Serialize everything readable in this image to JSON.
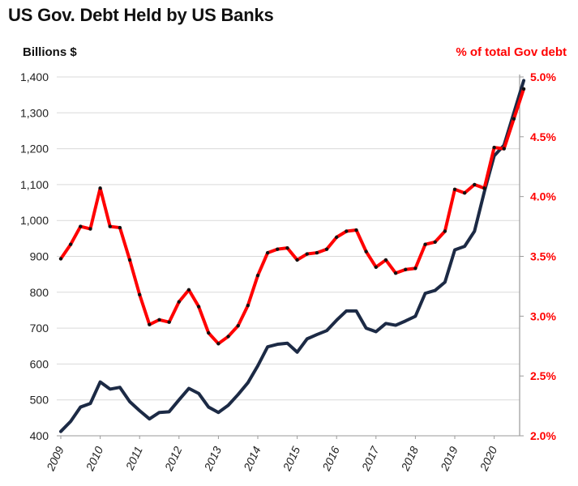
{
  "chart_data": {
    "type": "line",
    "title": "US Gov. Debt Held by US Banks",
    "ylabel_left": "Billions $",
    "ylabel_right": "% of total Gov debt",
    "colors": {
      "debt_line": "#1c2a45",
      "pct_line": "#ff0000",
      "markers": "#111111",
      "grid": "#d9d9d9",
      "right_axis": "#ff0000"
    },
    "ylim_left": [
      400,
      1400
    ],
    "ylim_right": [
      2.0,
      5.0
    ],
    "yticks_left": [
      "400",
      "500",
      "600",
      "700",
      "800",
      "900",
      "1,000",
      "1,100",
      "1,200",
      "1,300",
      "1,400"
    ],
    "yticks_right": [
      "2.0%",
      "2.5%",
      "3.0%",
      "3.5%",
      "4.0%",
      "4.5%",
      "5.0%"
    ],
    "xticks": [
      "2009",
      "2010",
      "2011",
      "2012",
      "2013",
      "2014",
      "2015",
      "2016",
      "2017",
      "2018",
      "2019",
      "2020"
    ],
    "grid": "horizontal",
    "x_quarters": [
      "2009Q1",
      "2009Q2",
      "2009Q3",
      "2009Q4",
      "2010Q1",
      "2010Q2",
      "2010Q3",
      "2010Q4",
      "2011Q1",
      "2011Q2",
      "2011Q3",
      "2011Q4",
      "2012Q1",
      "2012Q2",
      "2012Q3",
      "2012Q4",
      "2013Q1",
      "2013Q2",
      "2013Q3",
      "2013Q4",
      "2014Q1",
      "2014Q2",
      "2014Q3",
      "2014Q4",
      "2015Q1",
      "2015Q2",
      "2015Q3",
      "2015Q4",
      "2016Q1",
      "2016Q2",
      "2016Q3",
      "2016Q4",
      "2017Q1",
      "2017Q2",
      "2017Q3",
      "2017Q4",
      "2018Q1",
      "2018Q2",
      "2018Q3",
      "2018Q4",
      "2019Q1",
      "2019Q2",
      "2019Q3",
      "2019Q4",
      "2020Q1",
      "2020Q2",
      "2020Q3",
      "2020Q4"
    ],
    "series": [
      {
        "axis": "left",
        "values": [
          412,
          440,
          480,
          490,
          550,
          530,
          535,
          495,
          470,
          447,
          465,
          467,
          500,
          532,
          518,
          480,
          465,
          485,
          515,
          548,
          595,
          648,
          655,
          658,
          633,
          670,
          682,
          693,
          722,
          748,
          748,
          700,
          690,
          713,
          708,
          720,
          733,
          797,
          805,
          828,
          918,
          928,
          970,
          1080,
          1180,
          1210,
          1300,
          1390
        ]
      },
      {
        "axis": "right",
        "values": [
          3.48,
          3.6,
          3.75,
          3.73,
          4.07,
          3.75,
          3.74,
          3.47,
          3.18,
          2.93,
          2.97,
          2.95,
          3.12,
          3.22,
          3.08,
          2.86,
          2.77,
          2.83,
          2.92,
          3.09,
          3.34,
          3.53,
          3.56,
          3.57,
          3.47,
          3.52,
          3.53,
          3.56,
          3.66,
          3.71,
          3.72,
          3.54,
          3.41,
          3.47,
          3.36,
          3.39,
          3.4,
          3.6,
          3.62,
          3.71,
          4.06,
          4.03,
          4.1,
          4.07,
          4.41,
          4.4,
          4.65,
          4.9
        ]
      }
    ]
  }
}
